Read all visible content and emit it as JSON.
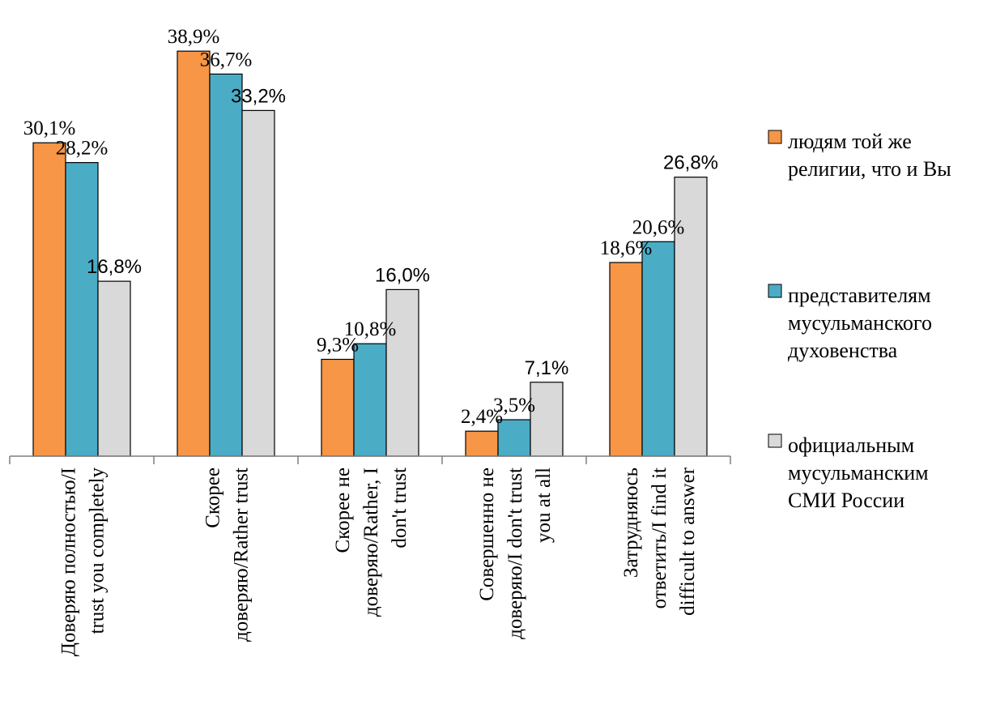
{
  "chart_data": {
    "type": "bar",
    "categories": [
      [
        "Доверяю полностью/I",
        "trust you completely"
      ],
      [
        "Скорее",
        "доверяю/Rather trust"
      ],
      [
        "Скорее не",
        "доверяю/Rather, I",
        "don't trust"
      ],
      [
        "Совершенно не",
        "доверяю/I don't trust",
        "you at all"
      ],
      [
        "Затрудняюсь",
        "ответить/I find it",
        "difficult to answer"
      ]
    ],
    "series": [
      {
        "name": "людям той же религии, что и Вы",
        "legend_lines": [
          "людям той же",
          "религии, что и Вы"
        ],
        "color": "#F79646",
        "values": [
          30.1,
          38.9,
          9.3,
          2.4,
          18.6
        ],
        "labels": [
          "30,1%",
          "38,9%",
          "9,3%",
          "2,4%",
          "18,6%"
        ]
      },
      {
        "name": "представителям мусульманского духовенства",
        "legend_lines": [
          "представителям",
          "мусульманского",
          "духовенства"
        ],
        "color": "#4BACC6",
        "values": [
          28.2,
          36.7,
          10.8,
          3.5,
          20.6
        ],
        "labels": [
          "28,2%",
          "36,7%",
          "10,8%",
          "3,5%",
          "20,6%"
        ]
      },
      {
        "name": "официальным мусульманским СМИ России",
        "legend_lines": [
          "официальным",
          "мусульманским",
          "СМИ России"
        ],
        "color": "#D9D9D9",
        "values": [
          16.8,
          33.2,
          16.0,
          7.1,
          26.8
        ],
        "labels": [
          "16,8%",
          "33,2%",
          "16,0%",
          "7,1%",
          "26,8%"
        ]
      }
    ],
    "ylim": [
      0,
      40
    ],
    "grid": false,
    "legend_position": "right"
  }
}
